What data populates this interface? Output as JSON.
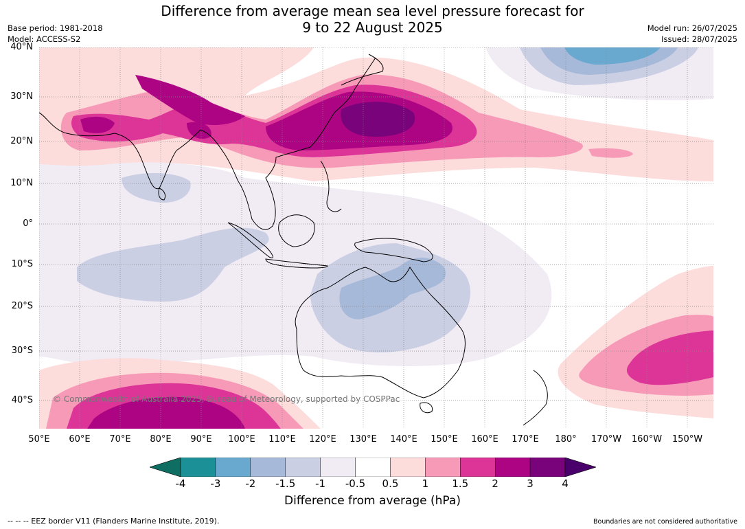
{
  "title_line1": "Difference from average mean sea level pressure forecast for",
  "title_line2": "9 to 22 August 2025",
  "base_period": "Base period: 1981-2018",
  "model": "Model: ACCESS-S2",
  "model_run": "Model run: 26/07/2025",
  "issued": "Issued: 28/07/2025",
  "copyright": "© Commonwealth of Australia 2025, Bureau of Meteorology, supported by COSPPac",
  "lat_labels": [
    "40°N",
    "30°N",
    "20°N",
    "10°N",
    "0°",
    "10°S",
    "20°S",
    "30°S",
    "40°S"
  ],
  "lon_labels": [
    "50°E",
    "60°E",
    "70°E",
    "80°E",
    "90°E",
    "100°E",
    "110°E",
    "120°E",
    "130°E",
    "140°E",
    "150°E",
    "160°E",
    "170°E",
    "180°",
    "170°W",
    "160°W",
    "150°W"
  ],
  "colorbar": {
    "label": "Difference from average (hPa)",
    "ticks": [
      "-4",
      "-3",
      "-2",
      "-1.5",
      "-1",
      "-0.5",
      "0.5",
      "1",
      "1.5",
      "2",
      "3",
      "4"
    ],
    "colors": [
      "#0f6e62",
      "#1b9197",
      "#69a9d0",
      "#a7b9d8",
      "#cbcfe4",
      "#f1ebf4",
      "#ffffff",
      "#fddcdc",
      "#f79ab8",
      "#dc3597",
      "#ad0483",
      "#79037a",
      "#4a006a"
    ]
  },
  "footer_left": "--  --  -- EEZ border V11 (Flanders Marine Institute, 2019).",
  "footer_right": "Boundaries are not considered authoritative"
}
